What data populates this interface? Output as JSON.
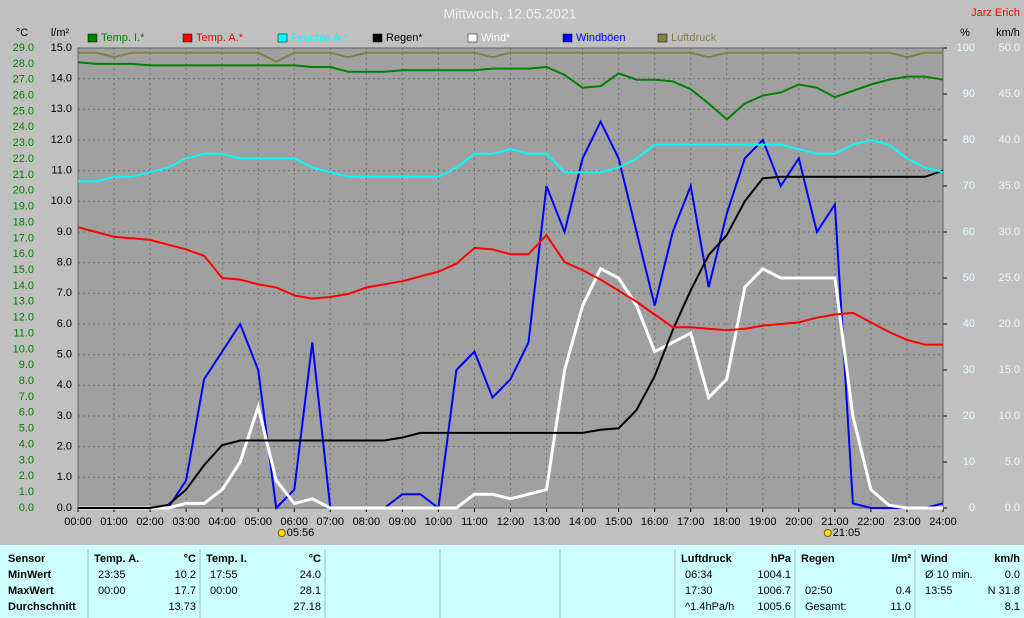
{
  "chart_data": {
    "type": "line",
    "title": "Mittwoch, 12.05.2021",
    "author": "Jarz Erich",
    "y_unit": "°C",
    "y2_unit": "l/m²",
    "y3_unit": "%",
    "y4_unit": "km/h",
    "x": [
      0,
      0.5,
      1,
      1.5,
      2,
      2.5,
      3,
      3.5,
      4,
      4.5,
      5,
      5.5,
      6,
      6.5,
      7,
      7.5,
      8,
      8.5,
      9,
      9.5,
      10,
      10.5,
      11,
      11.5,
      12,
      12.5,
      13,
      13.5,
      14,
      14.5,
      15,
      15.5,
      16,
      16.5,
      17,
      17.5,
      18,
      18.5,
      19,
      19.5,
      20,
      20.5,
      21,
      21.5,
      22,
      22.5,
      23,
      23.5,
      24
    ],
    "xlim": [
      0,
      24
    ],
    "xticks": [
      {
        "value": 0,
        "label": "00:00"
      },
      {
        "value": 1,
        "label": "01:00"
      },
      {
        "value": 2,
        "label": "02:00"
      },
      {
        "value": 3,
        "label": "03:00"
      },
      {
        "value": 4,
        "label": "04:00"
      },
      {
        "value": 5,
        "label": "05:00"
      },
      {
        "value": 6,
        "label": "06:00"
      },
      {
        "value": 7,
        "label": "07:00"
      },
      {
        "value": 8,
        "label": "08:00"
      },
      {
        "value": 9,
        "label": "09:00"
      },
      {
        "value": 10,
        "label": "10:00"
      },
      {
        "value": 11,
        "label": "11:00"
      },
      {
        "value": 12,
        "label": "12:00"
      },
      {
        "value": 13,
        "label": "13:00"
      },
      {
        "value": 14,
        "label": "14:00"
      },
      {
        "value": 15,
        "label": "15:00"
      },
      {
        "value": 16,
        "label": "16:00"
      },
      {
        "value": 17,
        "label": "17:00"
      },
      {
        "value": 18,
        "label": "18:00"
      },
      {
        "value": 19,
        "label": "19:00"
      },
      {
        "value": 20,
        "label": "20:00"
      },
      {
        "value": 21,
        "label": "21:00"
      },
      {
        "value": 22,
        "label": "22:00"
      },
      {
        "value": 23,
        "label": "23:00"
      },
      {
        "value": 24,
        "label": "24:00"
      }
    ],
    "ylim": [
      0,
      29
    ],
    "yticks": [
      {
        "value": 0,
        "label": "0.0"
      },
      {
        "value": 1,
        "label": "1.0"
      },
      {
        "value": 2,
        "label": "2.0"
      },
      {
        "value": 3,
        "label": "3.0"
      },
      {
        "value": 4,
        "label": "4.0"
      },
      {
        "value": 5,
        "label": "5.0"
      },
      {
        "value": 6,
        "label": "6.0"
      },
      {
        "value": 7,
        "label": "7.0"
      },
      {
        "value": 8,
        "label": "8.0"
      },
      {
        "value": 9,
        "label": "9.0"
      },
      {
        "value": 10,
        "label": "10.0"
      },
      {
        "value": 11,
        "label": "11.0"
      },
      {
        "value": 12,
        "label": "12.0"
      },
      {
        "value": 13,
        "label": "13.0"
      },
      {
        "value": 14,
        "label": "14.0"
      },
      {
        "value": 15,
        "label": "15.0"
      },
      {
        "value": 16,
        "label": "16.0"
      },
      {
        "value": 17,
        "label": "17.0"
      },
      {
        "value": 18,
        "label": "18.0"
      },
      {
        "value": 19,
        "label": "19.0"
      },
      {
        "value": 20,
        "label": "20.0"
      },
      {
        "value": 21,
        "label": "21.0"
      },
      {
        "value": 22,
        "label": "22.0"
      },
      {
        "value": 23,
        "label": "23.0"
      },
      {
        "value": 24,
        "label": "24.0"
      },
      {
        "value": 25,
        "label": "25.0"
      },
      {
        "value": 26,
        "label": "26.0"
      },
      {
        "value": 27,
        "label": "27.0"
      },
      {
        "value": 28,
        "label": "28.0"
      },
      {
        "value": 29,
        "label": "29.0"
      }
    ],
    "y2lim": [
      0,
      15
    ],
    "y2ticks": [
      {
        "value": 0,
        "label": "0.0"
      },
      {
        "value": 1,
        "label": "1.0"
      },
      {
        "value": 2,
        "label": "2.0"
      },
      {
        "value": 3,
        "label": "3.0"
      },
      {
        "value": 4,
        "label": "4.0"
      },
      {
        "value": 5,
        "label": "5.0"
      },
      {
        "value": 6,
        "label": "6.0"
      },
      {
        "value": 7,
        "label": "7.0"
      },
      {
        "value": 8,
        "label": "8.0"
      },
      {
        "value": 9,
        "label": "9.0"
      },
      {
        "value": 10,
        "label": "10.0"
      },
      {
        "value": 11,
        "label": "11.0"
      },
      {
        "value": 12,
        "label": "12.0"
      },
      {
        "value": 13,
        "label": "13.0"
      },
      {
        "value": 14,
        "label": "14.0"
      },
      {
        "value": 15,
        "label": "15.0"
      }
    ],
    "y3lim": [
      0,
      100
    ],
    "y3ticks": [
      0,
      10,
      20,
      30,
      40,
      50,
      60,
      70,
      80,
      90,
      100
    ],
    "y4lim": [
      0,
      50
    ],
    "y4ticks": [
      {
        "value": 0,
        "label": "0.0"
      },
      {
        "value": 5,
        "label": "5.0"
      },
      {
        "value": 10,
        "label": "10.0"
      },
      {
        "value": 15,
        "label": "15.0"
      },
      {
        "value": 20,
        "label": "20.0"
      },
      {
        "value": 25,
        "label": "25.0"
      },
      {
        "value": 30,
        "label": "30.0"
      },
      {
        "value": 35,
        "label": "35.0"
      },
      {
        "value": 40,
        "label": "40.0"
      },
      {
        "value": 45,
        "label": "45.0"
      },
      {
        "value": 50,
        "label": "50.0"
      }
    ],
    "grid": true,
    "series": [
      {
        "name": "Temp. I.*",
        "color": "#008000",
        "axis": "y",
        "values": [
          28.1,
          28.0,
          28.0,
          28.0,
          27.9,
          27.9,
          27.9,
          27.9,
          27.9,
          27.9,
          27.9,
          27.9,
          27.9,
          27.8,
          27.8,
          27.5,
          27.5,
          27.5,
          27.6,
          27.6,
          27.6,
          27.6,
          27.6,
          27.7,
          27.7,
          27.7,
          27.8,
          27.3,
          26.5,
          26.6,
          27.4,
          27.0,
          27.0,
          26.9,
          26.4,
          25.5,
          24.5,
          25.5,
          26.0,
          26.2,
          26.7,
          26.5,
          25.9,
          26.3,
          26.7,
          27.0,
          27.2,
          27.2,
          27.0
        ]
      },
      {
        "name": "Temp. A.*",
        "color": "#ff0000",
        "axis": "y",
        "values": [
          17.7,
          17.4,
          17.1,
          17.0,
          16.9,
          16.6,
          16.3,
          15.9,
          14.5,
          14.4,
          14.1,
          13.9,
          13.4,
          13.2,
          13.3,
          13.5,
          13.9,
          14.1,
          14.3,
          14.6,
          14.9,
          15.4,
          16.4,
          16.3,
          16.0,
          16.0,
          17.2,
          15.5,
          15.0,
          14.4,
          13.7,
          13.0,
          12.2,
          11.4,
          11.4,
          11.3,
          11.2,
          11.3,
          11.5,
          11.6,
          11.7,
          12.0,
          12.2,
          12.3,
          11.7,
          11.1,
          10.6,
          10.3,
          10.3
        ]
      },
      {
        "name": "Feuchte A.*",
        "color": "#00ffff",
        "axis": "y3",
        "values": [
          71,
          71,
          72,
          72,
          73,
          74,
          76,
          77,
          77,
          76,
          76,
          76,
          76,
          74,
          73,
          72,
          72,
          72,
          72,
          72,
          72,
          74,
          77,
          77,
          78,
          77,
          77,
          73,
          73,
          73,
          74,
          76,
          79,
          79,
          79,
          79,
          79,
          79,
          79,
          79,
          78,
          77,
          77,
          79,
          80,
          79,
          76,
          74,
          73
        ]
      },
      {
        "name": "Regen*",
        "color": "#000000",
        "axis": "y2",
        "values": [
          0,
          0,
          0,
          0,
          0,
          0.1,
          0.6,
          1.4,
          2.05,
          2.2,
          2.2,
          2.2,
          2.2,
          2.2,
          2.2,
          2.2,
          2.2,
          2.2,
          2.3,
          2.45,
          2.45,
          2.45,
          2.45,
          2.45,
          2.45,
          2.45,
          2.45,
          2.45,
          2.45,
          2.55,
          2.6,
          3.2,
          4.3,
          5.8,
          7.1,
          8.25,
          8.9,
          10.0,
          10.75,
          10.8,
          10.8,
          10.8,
          10.8,
          10.8,
          10.8,
          10.8,
          10.8,
          10.8,
          11.0
        ]
      },
      {
        "name": "Wind*",
        "color": "#ffffff",
        "axis": "y4",
        "values": [
          0,
          0,
          0,
          0,
          0,
          0,
          0.5,
          0.5,
          2,
          5,
          11,
          3,
          0.5,
          1,
          0,
          0,
          0,
          0,
          0,
          0,
          0,
          0,
          1.5,
          1.5,
          1,
          1.5,
          2,
          15,
          22,
          26,
          25,
          22,
          17,
          18,
          19,
          12,
          14,
          24,
          26,
          25,
          25,
          25,
          25,
          10,
          2,
          0.3,
          0,
          0,
          0
        ]
      },
      {
        "name": "Windböen",
        "color": "#0000ff",
        "axis": "y4",
        "values": [
          0,
          0,
          0,
          0,
          0,
          0,
          3,
          14,
          17,
          20,
          15,
          0,
          2,
          18,
          0,
          0,
          0,
          0,
          1.5,
          1.5,
          0,
          15,
          17,
          12,
          14,
          18,
          35,
          30,
          38,
          42,
          38,
          30,
          22,
          30,
          35,
          24,
          32,
          38,
          40,
          35,
          38,
          30,
          33,
          0.5,
          0,
          0,
          0,
          0,
          0.5
        ]
      },
      {
        "name": "Luftdruck",
        "color": "#808040",
        "axis": "y3",
        "values": [
          99,
          99,
          98,
          99,
          99,
          99,
          99,
          99,
          99,
          99,
          99,
          97,
          99,
          99,
          99,
          98,
          99,
          99,
          99,
          99,
          99,
          99,
          99,
          98,
          99,
          99,
          99,
          99,
          99,
          99,
          99,
          99,
          99,
          99,
          99,
          98,
          99,
          99,
          99,
          99,
          99,
          99,
          99,
          99,
          99,
          99,
          98,
          99,
          99
        ]
      }
    ],
    "annotations": [
      {
        "label": "05:56",
        "x": 5.93
      },
      {
        "label": "21:05",
        "x": 21.08
      }
    ]
  },
  "stats": {
    "header": "Sensor",
    "row_labels": [
      "MinWert",
      "MaxWert",
      "Durchschnitt"
    ],
    "groups": [
      {
        "title": "Temp. A.",
        "unit": "°C",
        "rows": [
          {
            "time": "23:35",
            "value": "10.2"
          },
          {
            "time": "00:00",
            "value": "17.7"
          },
          {
            "value": "13.73"
          }
        ]
      },
      {
        "title": "Temp. I.",
        "unit": "°C",
        "rows": [
          {
            "time": "17:55",
            "value": "24.0"
          },
          {
            "time": "00:00",
            "value": "28.1"
          },
          {
            "value": "27.18"
          }
        ]
      },
      {
        "title": "Luftdruck",
        "unit": "hPa",
        "rows": [
          {
            "time": "06:34",
            "value": "1004.1"
          },
          {
            "time": "17:30",
            "value": "1006.7"
          },
          {
            "time": "^1.4hPa/h",
            "value": "1005.6"
          }
        ]
      },
      {
        "title": "Regen",
        "unit": "l/m²",
        "rows": [
          {},
          {
            "time": "02:50",
            "value": "0.4"
          },
          {
            "time": "Gesamt:",
            "value": "11.0"
          }
        ]
      },
      {
        "title": "Wind",
        "unit": "km/h",
        "rows": [
          {
            "time": "Ø 10 min.",
            "value": "0.0"
          },
          {
            "time": "13:55",
            "value": "N 31.8"
          },
          {
            "value": "8.1"
          }
        ]
      }
    ]
  }
}
